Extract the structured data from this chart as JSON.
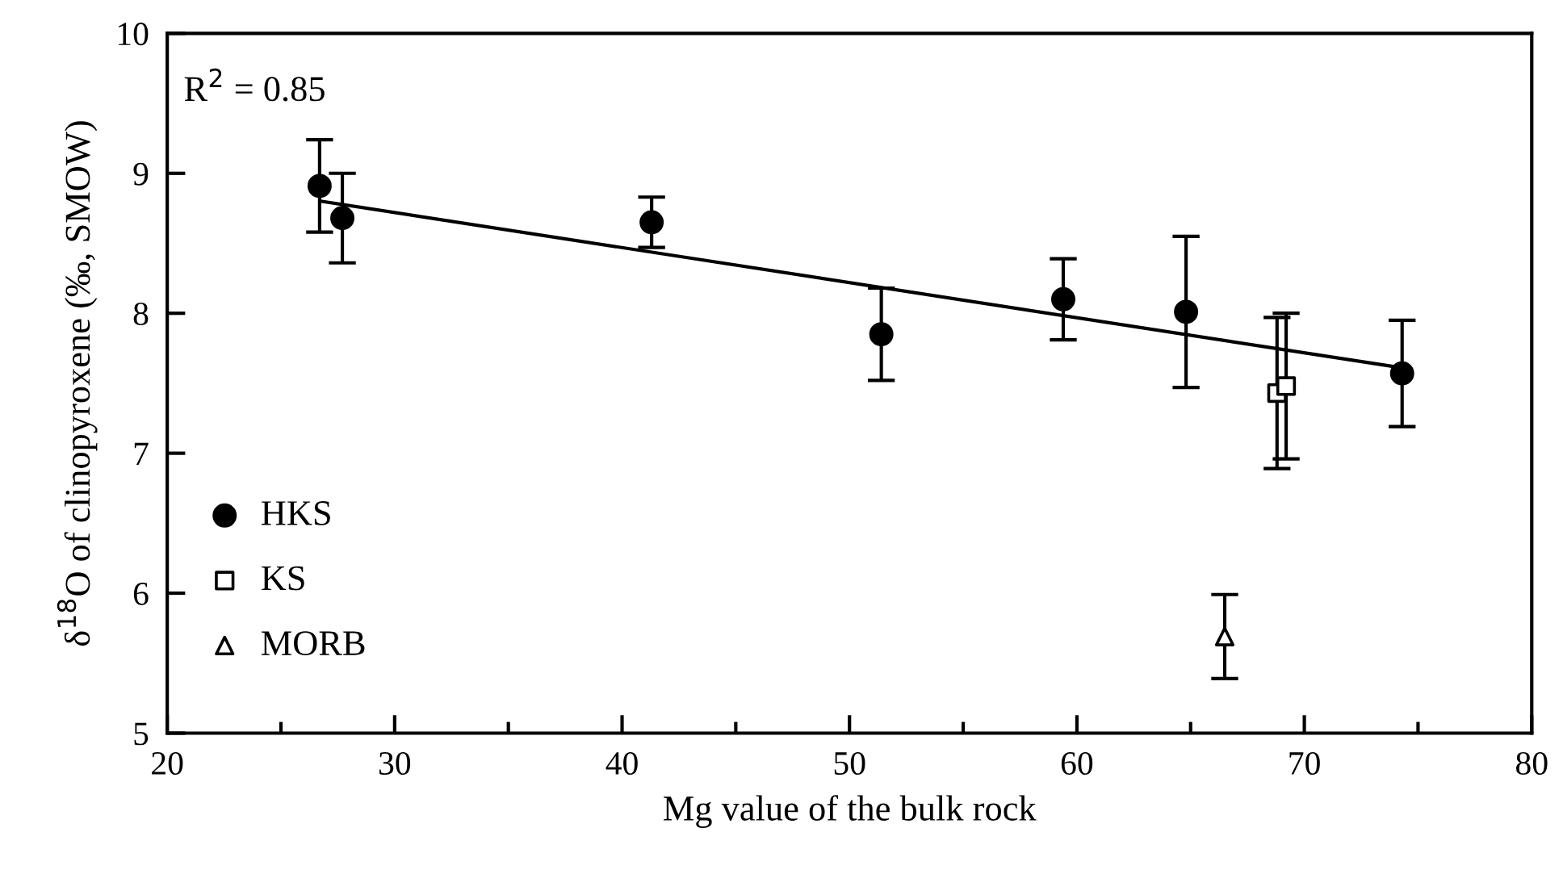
{
  "chart_data": {
    "type": "scatter",
    "xlabel": "Mg value of the bulk rock",
    "ylabel": "δ$^{18}$O of clinopyroxene (‰, SMOW)",
    "annotations": [
      "R$^{2}$ = 0.85"
    ],
    "xlim": [
      20,
      80
    ],
    "xticks": [
      20,
      {
        "value": 25,
        "label": null
      },
      30,
      {
        "value": 35,
        "label": null
      },
      40,
      {
        "value": 45,
        "label": null
      },
      50,
      {
        "value": 55,
        "label": null
      },
      60,
      {
        "value": 65,
        "label": null
      },
      70,
      {
        "value": 75,
        "label": null
      },
      80
    ],
    "ylim": [
      5,
      10
    ],
    "yticks": [
      5,
      6,
      7,
      8,
      9,
      10
    ],
    "grid": false,
    "legend": "bottom left",
    "series": [
      {
        "name": "HKS",
        "color": "#000000",
        "marker": "circle",
        "x": [
          26.7,
          27.7,
          41.3,
          51.4,
          59.4,
          64.8,
          74.3
        ],
        "values": [
          8.91,
          8.68,
          8.65,
          7.85,
          8.1,
          8.01,
          7.57
        ],
        "errors": [
          0.33,
          0.32,
          0.18,
          0.33,
          0.29,
          0.54,
          0.38
        ]
      },
      {
        "name": "KS",
        "color": "#ffffff",
        "marker": "square",
        "x": [
          68.8,
          69.2
        ],
        "values": [
          7.43,
          7.48
        ],
        "errors": [
          0.54,
          0.52
        ]
      },
      {
        "name": "MORB",
        "color": "#ffffff",
        "marker": "triangle",
        "x": [
          66.5
        ],
        "values": [
          5.69
        ],
        "errors": [
          0.3
        ]
      },
      {
        "type": "line",
        "color": "#000000",
        "marker": "none",
        "line_style": "solid",
        "x": [
          26.8,
          74.3
        ],
        "values": [
          8.8,
          7.61
        ]
      }
    ]
  }
}
